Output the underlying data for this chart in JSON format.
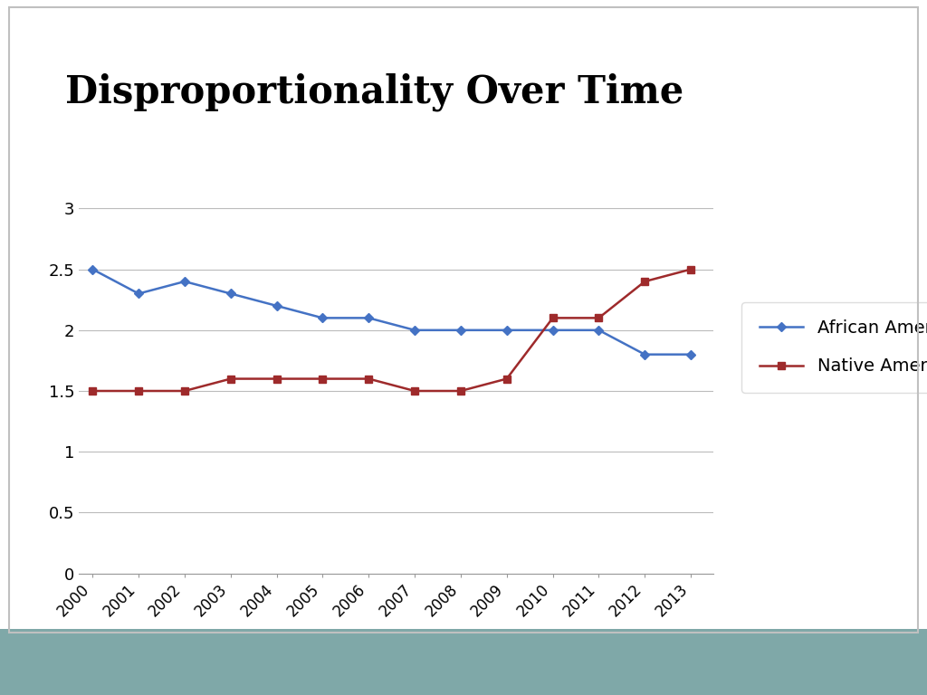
{
  "title": "Disproportionality Over Time",
  "title_fontsize": 30,
  "title_fontweight": "bold",
  "years": [
    2000,
    2001,
    2002,
    2003,
    2004,
    2005,
    2006,
    2007,
    2008,
    2009,
    2010,
    2011,
    2012,
    2013
  ],
  "african_american": [
    2.5,
    2.3,
    2.4,
    2.3,
    2.2,
    2.1,
    2.1,
    2.0,
    2.0,
    2.0,
    2.0,
    2.0,
    1.8,
    1.8
  ],
  "native_american": [
    1.5,
    1.5,
    1.5,
    1.6,
    1.6,
    1.6,
    1.6,
    1.5,
    1.5,
    1.6,
    2.1,
    2.1,
    2.4,
    2.5
  ],
  "aa_color": "#4472C4",
  "na_color": "#9E2A2B",
  "aa_label": "African American",
  "na_label": "Native American",
  "ylim": [
    0,
    3.2
  ],
  "yticks": [
    0,
    0.5,
    1.0,
    1.5,
    2.0,
    2.5,
    3.0
  ],
  "ytick_labels": [
    "0",
    "0.5",
    "1",
    "1.5",
    "2",
    "2.5",
    "3"
  ],
  "background_color": "#ffffff",
  "plot_bg_color": "#ffffff",
  "bottom_bar_color": "#7FA8A8",
  "grid_color": "#bbbbbb",
  "legend_fontsize": 14,
  "outer_border_color": "#c0c0c0"
}
